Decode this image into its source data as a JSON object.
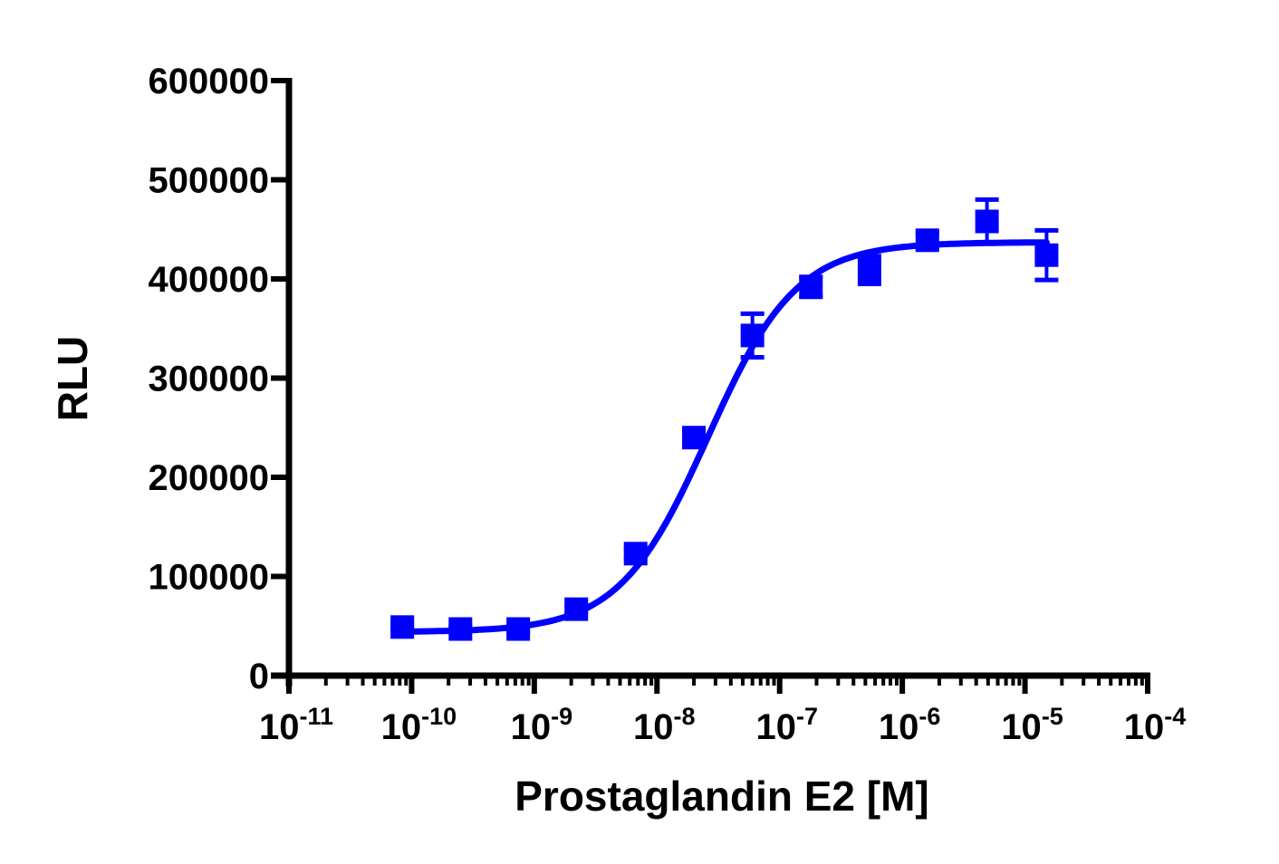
{
  "chart_data": {
    "type": "scatter",
    "title": "",
    "xlabel": "Prostaglandin E2 [M]",
    "ylabel": "RLU",
    "x_scale": "log",
    "xlim": [
      1e-11,
      0.0001
    ],
    "ylim": [
      0,
      600000
    ],
    "x_ticks": [
      "10^-11",
      "10^-10",
      "10^-9",
      "10^-8",
      "10^-7",
      "10^-6",
      "10^-5",
      "10^-4"
    ],
    "x_tick_labels": [
      {
        "base": "10",
        "exp": "-11"
      },
      {
        "base": "10",
        "exp": "-10"
      },
      {
        "base": "10",
        "exp": "-9"
      },
      {
        "base": "10",
        "exp": "-8"
      },
      {
        "base": "10",
        "exp": "-7"
      },
      {
        "base": "10",
        "exp": "-6"
      },
      {
        "base": "10",
        "exp": "-5"
      },
      {
        "base": "10",
        "exp": "-4"
      }
    ],
    "y_ticks": [
      "0",
      "100000",
      "200000",
      "300000",
      "400000",
      "500000",
      "600000"
    ],
    "grid": false,
    "legend": null,
    "color": "#0000FF",
    "series": [
      {
        "name": "Prostaglandin E2",
        "marker": "square",
        "x": [
          8.4e-11,
          2.5e-10,
          7.4e-10,
          2.2e-09,
          6.7e-09,
          2e-08,
          6e-08,
          1.8e-07,
          5.4e-07,
          1.6e-06,
          4.9e-06,
          1.5e-05
        ],
        "y": [
          49000,
          47000,
          47000,
          67000,
          123000,
          240000,
          343000,
          392000,
          409000,
          439000,
          458000,
          424000
        ],
        "error": [
          3000,
          3000,
          3000,
          4000,
          5000,
          6000,
          22000,
          10000,
          14000,
          7000,
          22000,
          25000
        ]
      }
    ],
    "fit": {
      "type": "4PL sigmoid",
      "bottom": 44000,
      "top": 437000,
      "ec50": 2.6e-08,
      "hill": 1.2
    }
  }
}
